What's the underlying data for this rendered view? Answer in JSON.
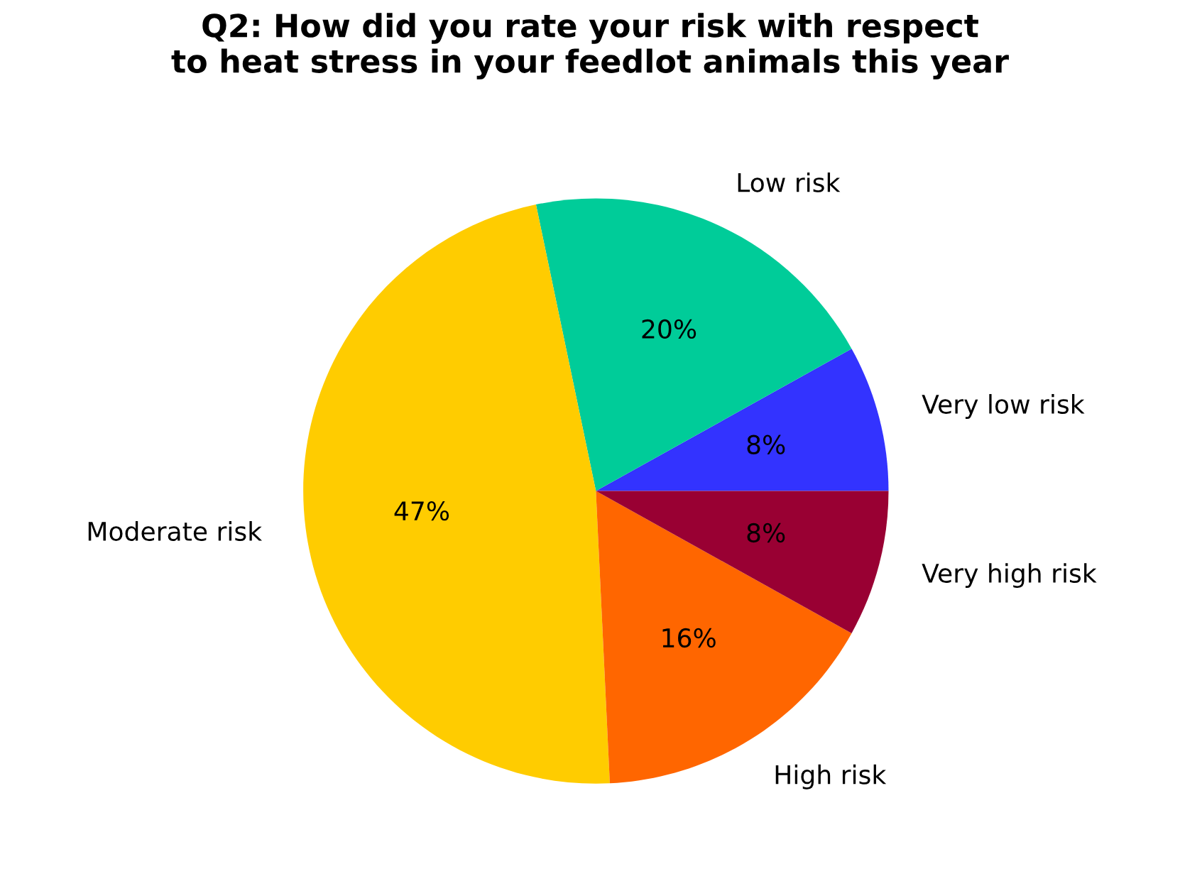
{
  "chart_data": {
    "type": "pie",
    "title": "Q2: How did you rate your risk with respect\nto heat stress in your feedlot animals this year",
    "categories": [
      "Very low risk",
      "Low risk",
      "Moderate risk",
      "High risk",
      "Very high risk"
    ],
    "values": [
      8,
      20,
      47,
      16,
      8
    ],
    "value_labels": [
      "8%",
      "20%",
      "47%",
      "16%",
      "8%"
    ],
    "colors": [
      "#3333ff",
      "#00cc99",
      "#ffcc00",
      "#ff6600",
      "#990033"
    ]
  }
}
